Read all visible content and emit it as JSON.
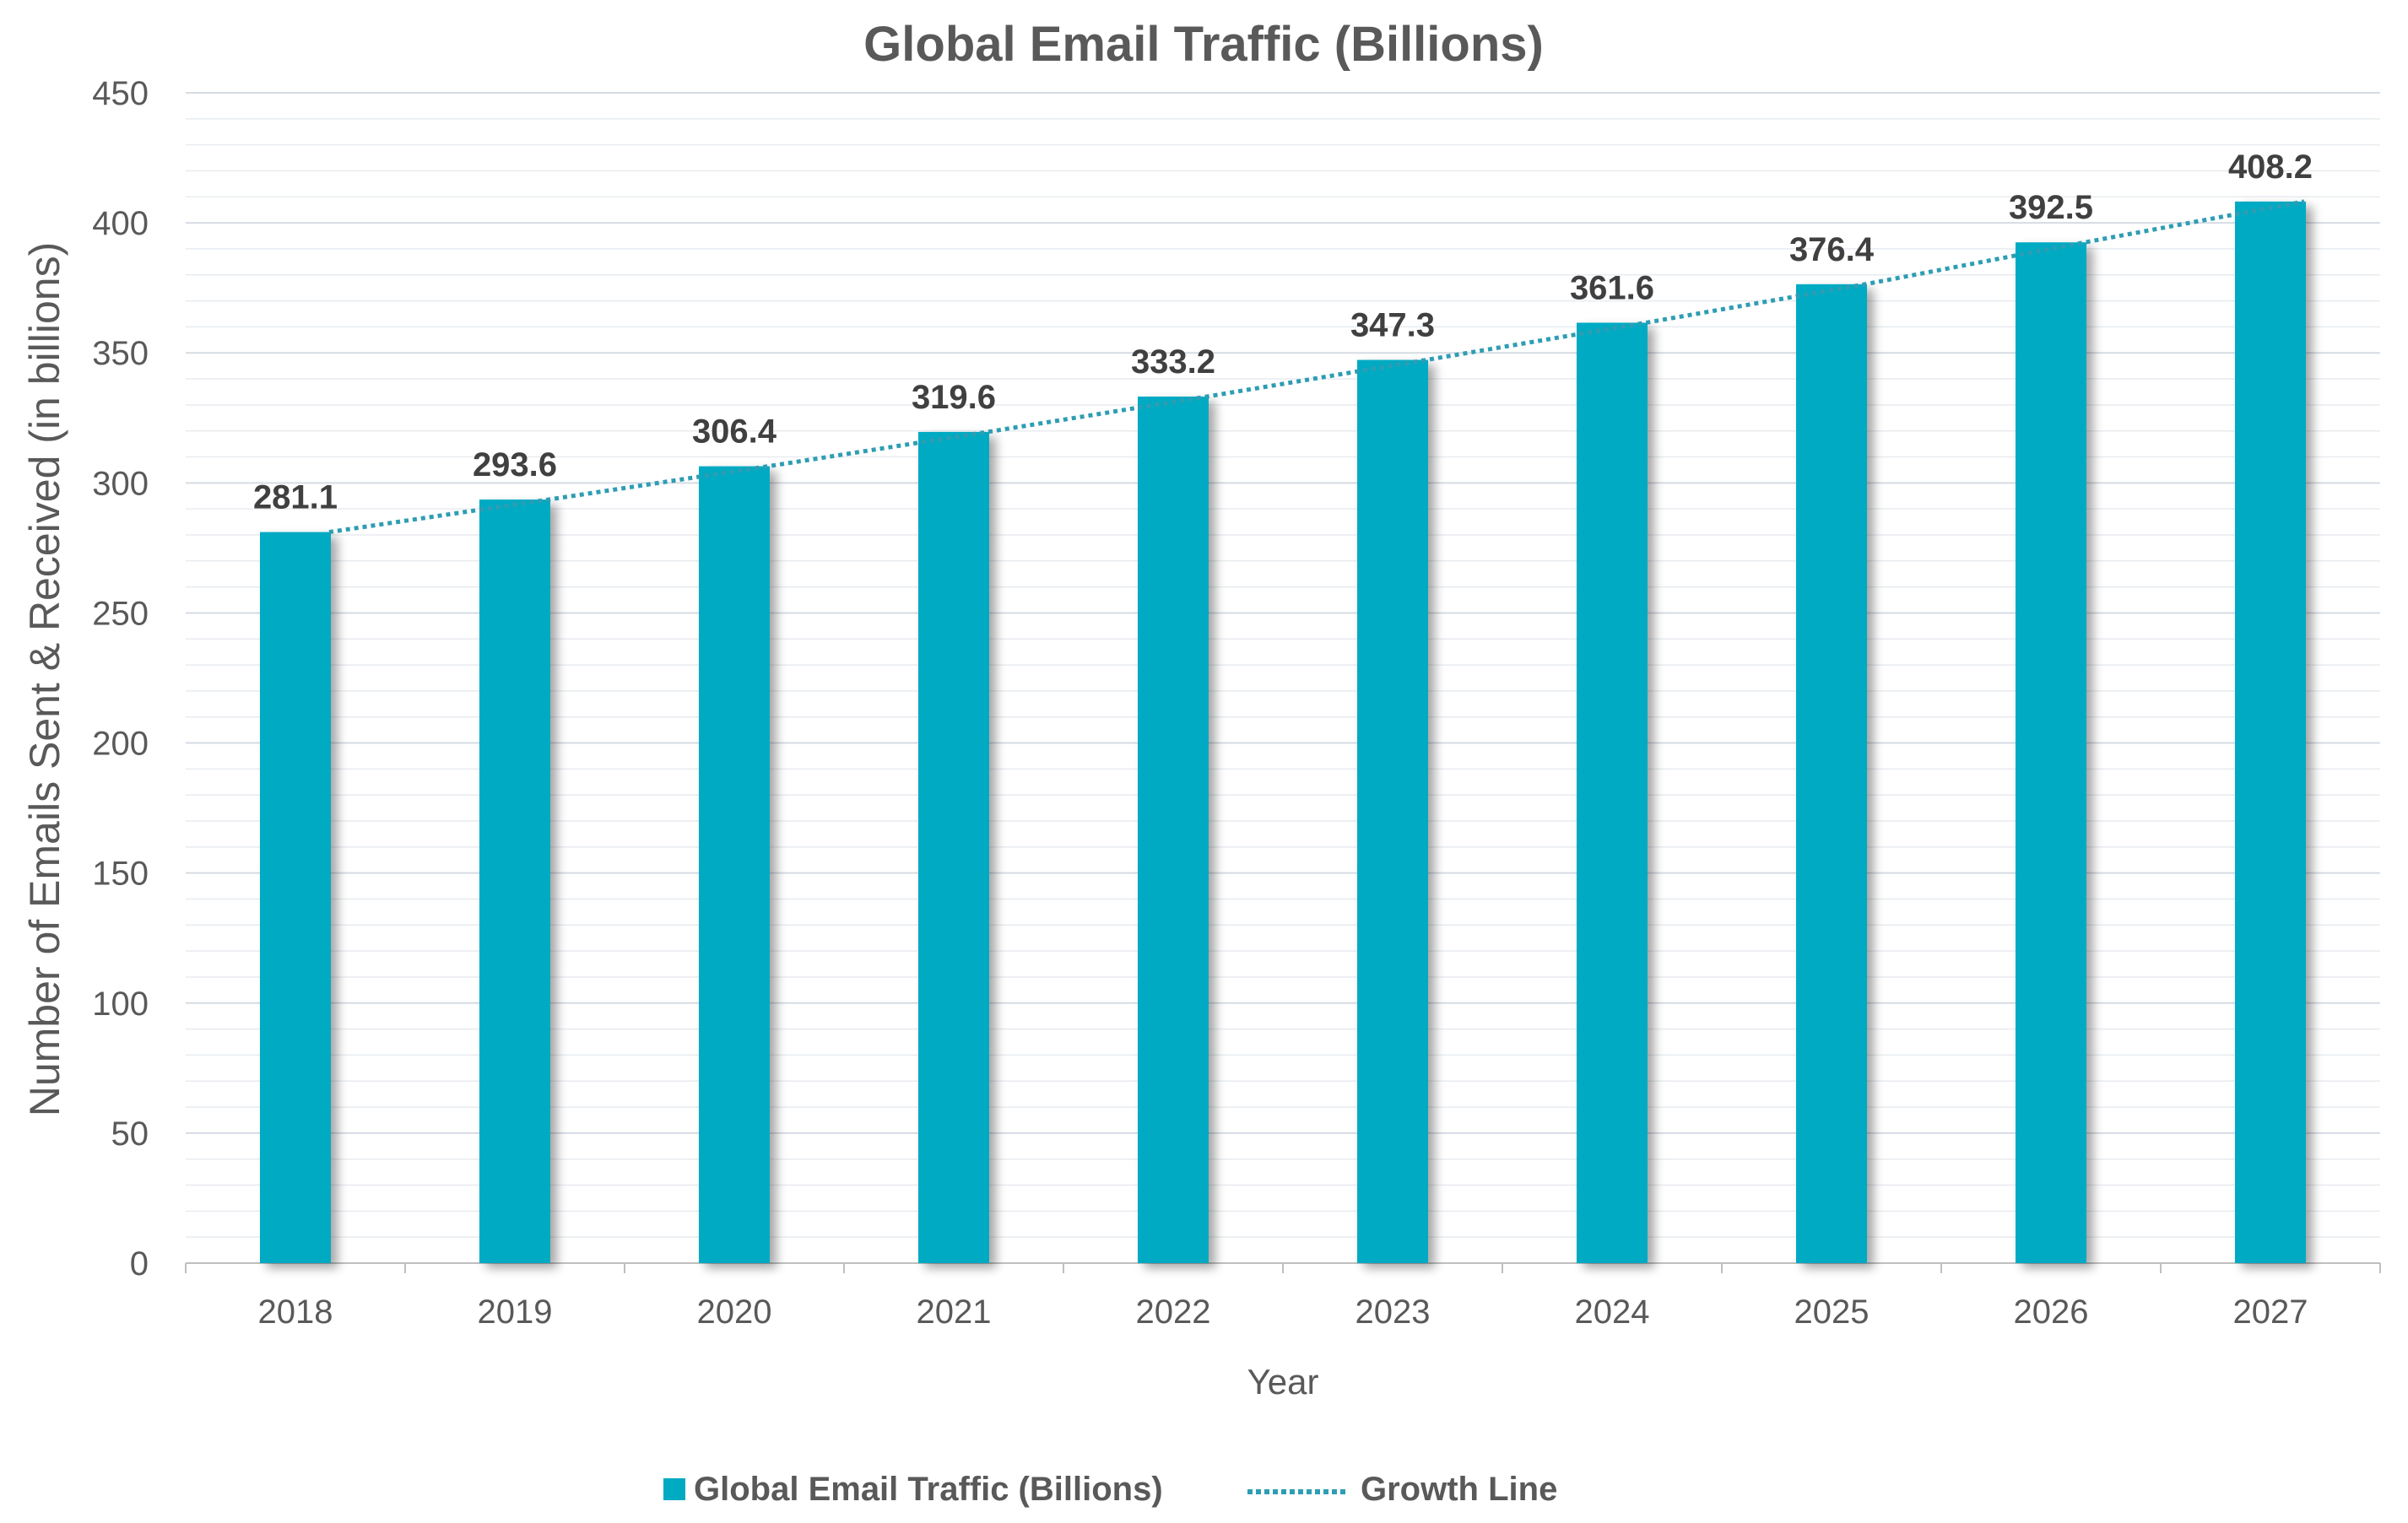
{
  "chart_data": {
    "type": "bar",
    "title": "Global Email Traffic (Billions)",
    "xlabel": "Year",
    "ylabel": "Number of Emails Sent & Received (in billions)",
    "categories": [
      "2018",
      "2019",
      "2020",
      "2021",
      "2022",
      "2023",
      "2024",
      "2025",
      "2026",
      "2027"
    ],
    "series": [
      {
        "name": "Global Email Traffic (Billions)",
        "type": "bar",
        "color": "#00AAC3",
        "values": [
          281.1,
          293.6,
          306.4,
          319.6,
          333.2,
          347.3,
          361.6,
          376.4,
          392.5,
          408.2
        ],
        "data_labels": [
          "281.1",
          "293.6",
          "306.4",
          "319.6",
          "333.2",
          "347.3",
          "361.6",
          "376.4",
          "392.5",
          "408.2"
        ]
      },
      {
        "name": "Growth Line",
        "type": "line",
        "style": "dotted",
        "color": "#2E9DB3",
        "values": [
          281.1,
          293.6,
          306.4,
          319.6,
          333.2,
          347.3,
          361.6,
          376.4,
          392.5,
          408.2
        ]
      }
    ],
    "ylim": [
      0,
      450
    ],
    "yticks": [
      "0",
      "50",
      "100",
      "150",
      "200",
      "250",
      "300",
      "350",
      "400",
      "450"
    ],
    "grid": true,
    "legend_position": "bottom"
  }
}
